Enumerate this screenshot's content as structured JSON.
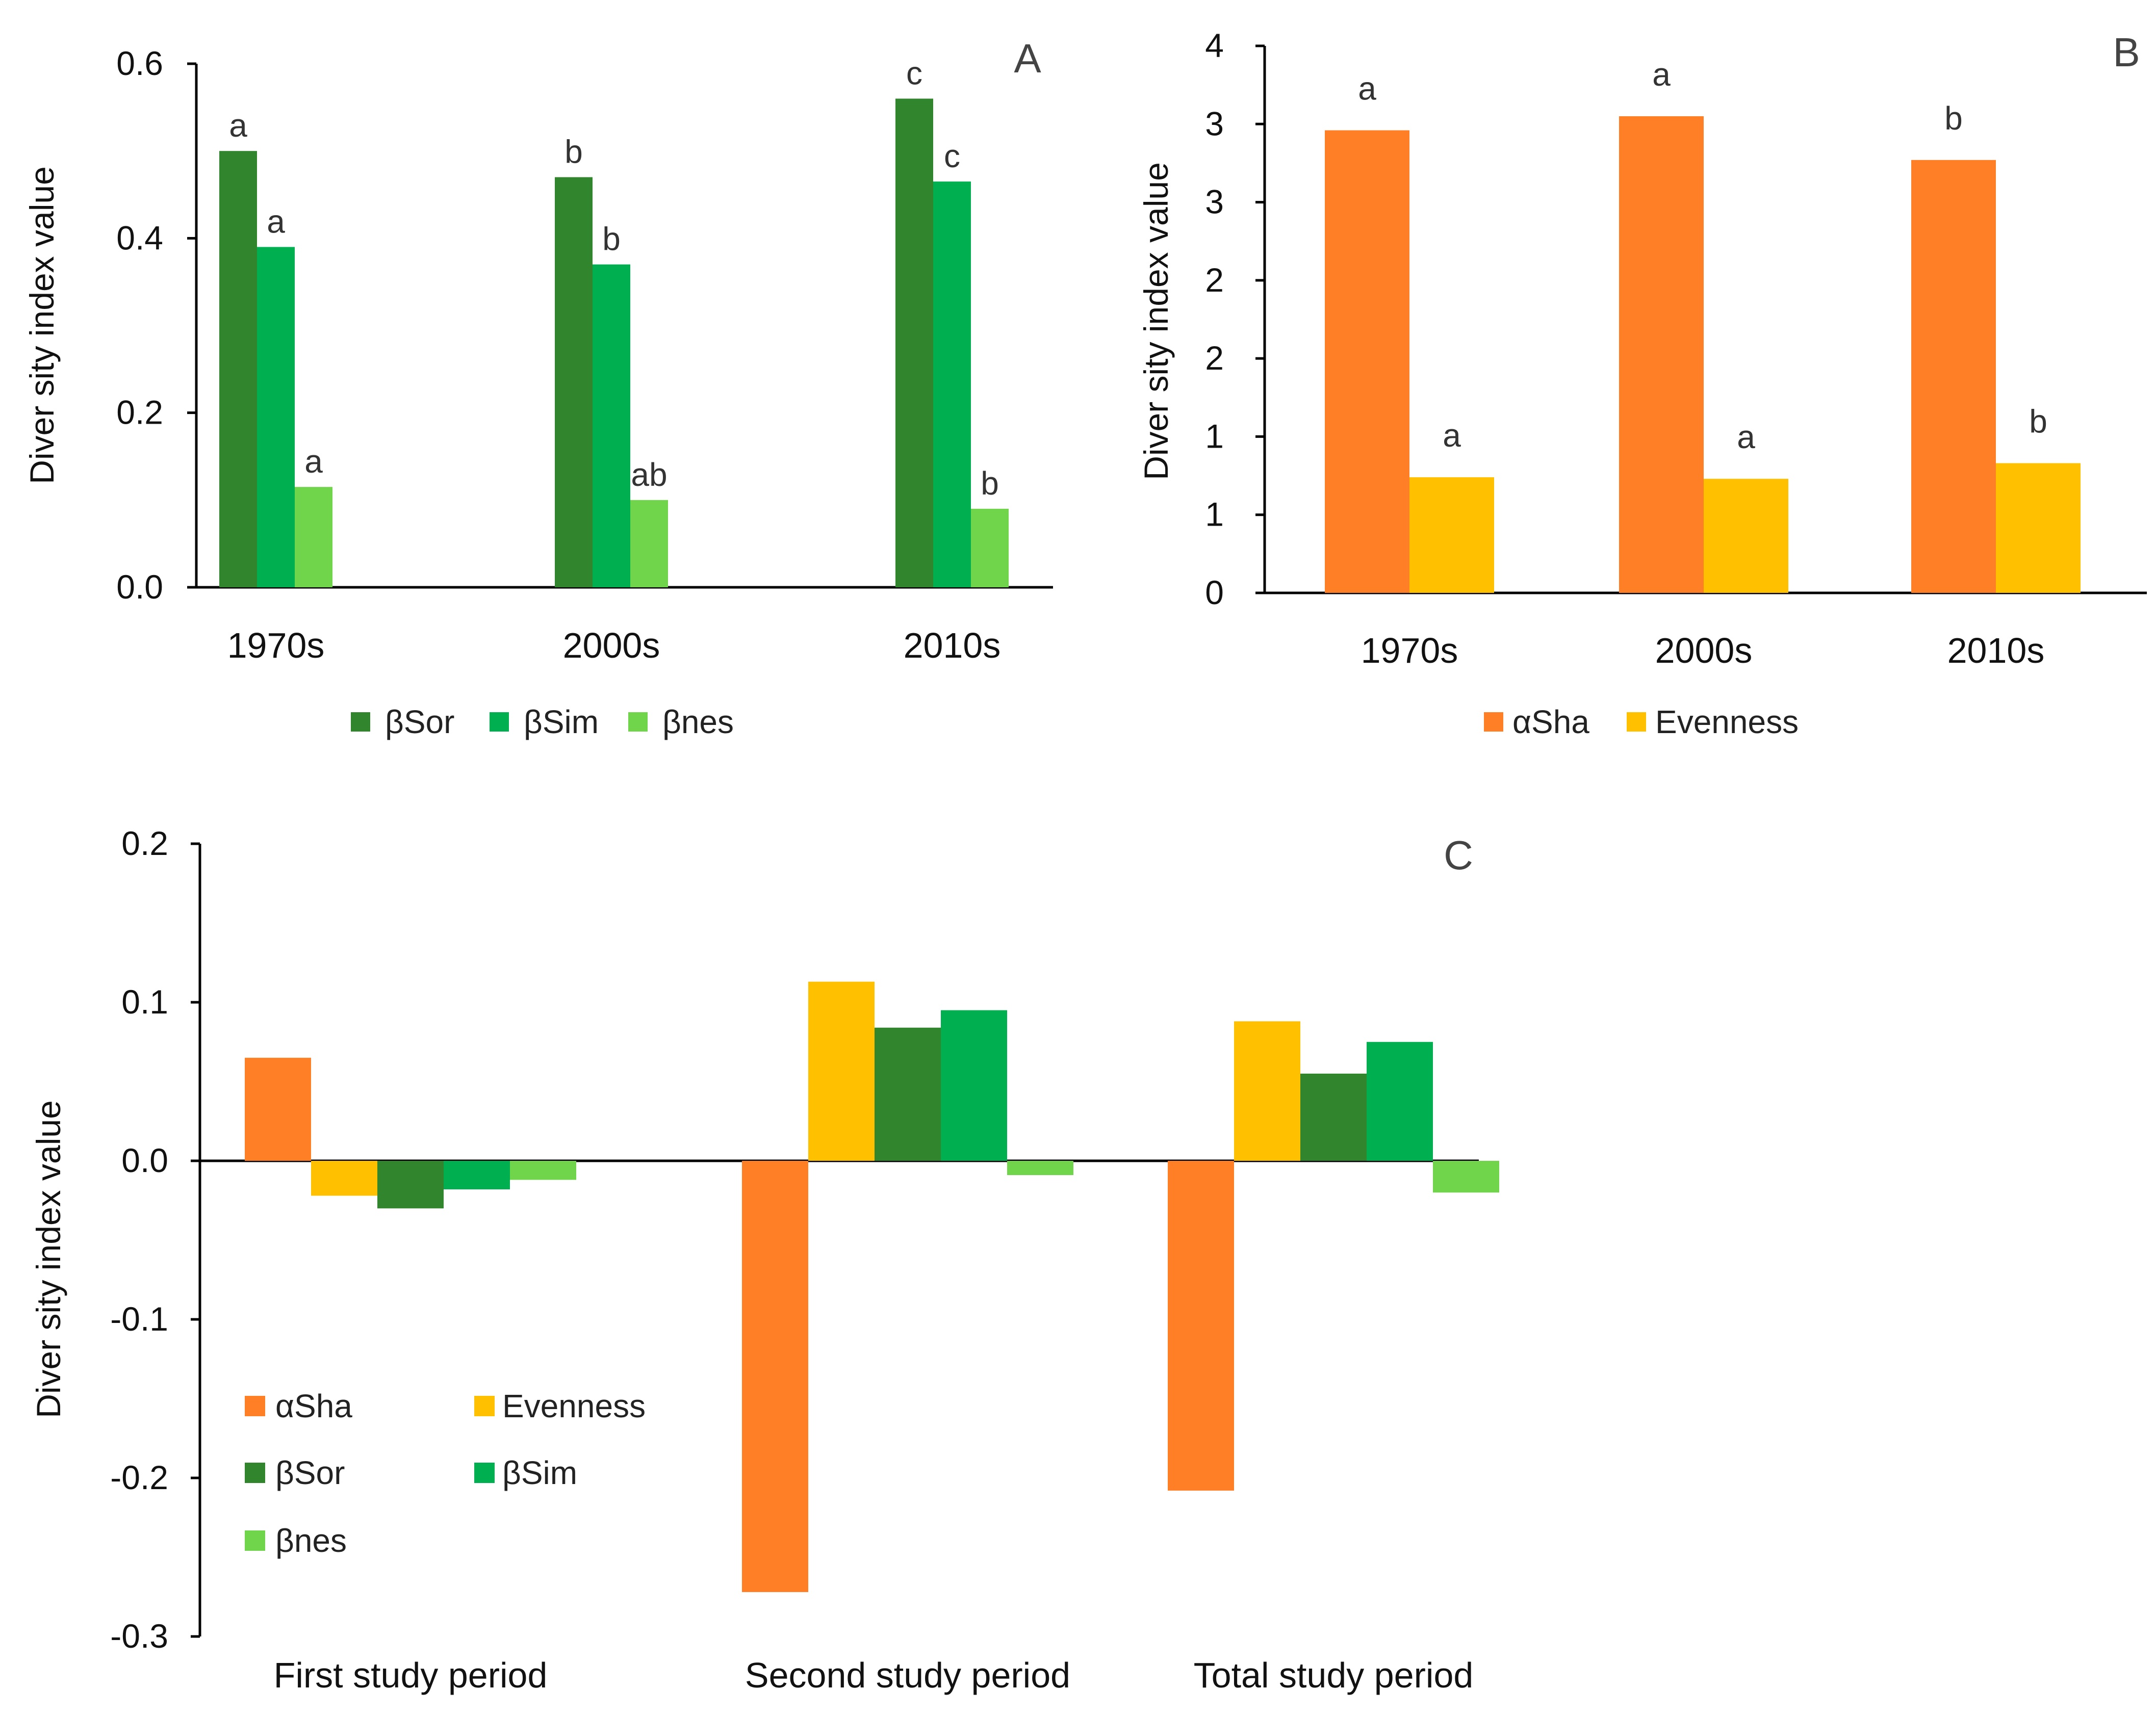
{
  "colors": {
    "bSor": "#31862d",
    "bSim": "#00b050",
    "bnes": "#70d54a",
    "aSha": "#ff7f27",
    "evenness": "#ffc000",
    "axis": "#000000"
  },
  "chart_data": [
    {
      "panel": "A",
      "type": "bar",
      "ylabel": "Diver sity index value",
      "ylim": [
        0.0,
        0.6
      ],
      "yticks": [
        "0.0",
        "0.2",
        "0.4",
        "0.6"
      ],
      "categories": [
        "1970s",
        "2000s",
        "2010s"
      ],
      "series": [
        {
          "name": "βSor",
          "color_key": "bSor",
          "values": [
            0.5,
            0.47,
            0.56
          ],
          "sig": [
            "a",
            "b",
            "c"
          ]
        },
        {
          "name": "βSim",
          "color_key": "bSim",
          "values": [
            0.39,
            0.37,
            0.465
          ],
          "sig": [
            "a",
            "b",
            "c"
          ]
        },
        {
          "name": "βnes",
          "color_key": "bnes",
          "values": [
            0.115,
            0.1,
            0.09
          ],
          "sig": [
            "a",
            "ab",
            "b"
          ]
        }
      ],
      "legend": "bottom"
    },
    {
      "panel": "B",
      "type": "bar",
      "ylabel": "Diver sity index value",
      "ylim": [
        0,
        3.5
      ],
      "yticks": [
        "0",
        "1",
        "1",
        "2",
        "2",
        "3",
        "3",
        "4"
      ],
      "categories": [
        "1970s",
        "2000s",
        "2010s"
      ],
      "series": [
        {
          "name": "αSha",
          "color_key": "aSha",
          "values": [
            2.96,
            3.05,
            2.77
          ],
          "sig": [
            "a",
            "a",
            "b"
          ]
        },
        {
          "name": "Evenness",
          "color_key": "evenness",
          "values": [
            0.74,
            0.73,
            0.83
          ],
          "sig": [
            "a",
            "a",
            "b"
          ]
        }
      ],
      "legend": "bottom"
    },
    {
      "panel": "C",
      "type": "bar",
      "ylabel": "Diver sity index value",
      "ylim": [
        -0.3,
        0.2
      ],
      "yticks": [
        "-0.3",
        "-0.2",
        "-0.1",
        "0.0",
        "0.1",
        "0.2"
      ],
      "categories": [
        "First study period",
        "Second study period",
        "Total study period"
      ],
      "series": [
        {
          "name": "αSha",
          "color_key": "aSha",
          "values": [
            0.065,
            -0.272,
            -0.208
          ]
        },
        {
          "name": "Evenness",
          "color_key": "evenness",
          "values": [
            -0.022,
            0.113,
            0.088
          ]
        },
        {
          "name": "βSor",
          "color_key": "bSor",
          "values": [
            -0.03,
            0.084,
            0.055
          ]
        },
        {
          "name": "βSim",
          "color_key": "bSim",
          "values": [
            -0.018,
            0.095,
            0.075
          ]
        },
        {
          "name": "βnes",
          "color_key": "bnes",
          "values": [
            -0.012,
            -0.009,
            -0.02
          ]
        }
      ],
      "legend": "inside-lower-left"
    }
  ]
}
